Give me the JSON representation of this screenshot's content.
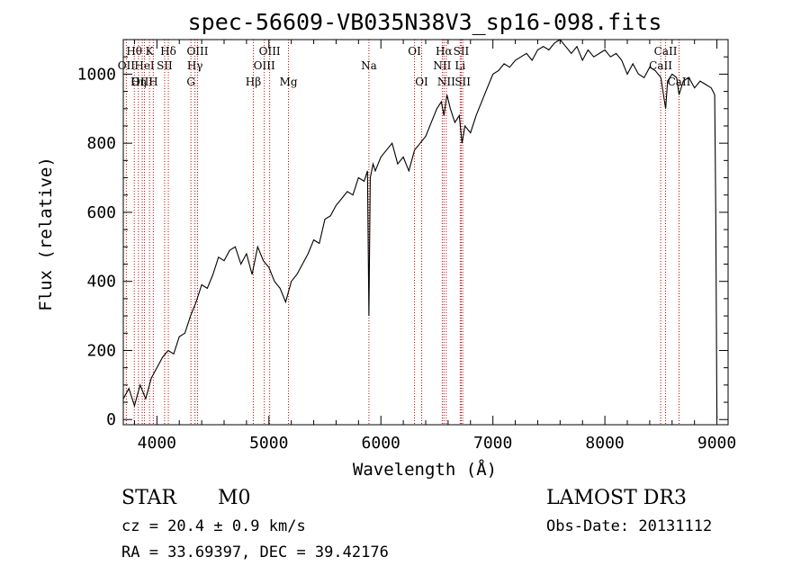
{
  "chart_data": {
    "type": "line",
    "title": "spec-56609-VB035N38V3_sp16-098.fits",
    "xlabel": "Wavelength (Å)",
    "ylabel": "Flux (relative)",
    "xlim": [
      3700,
      9100
    ],
    "ylim": [
      -15,
      1100
    ],
    "xticks": [
      4000,
      5000,
      6000,
      7000,
      8000,
      9000
    ],
    "xtick_labels": [
      "4000",
      "5000",
      "6000",
      "7000",
      "8000",
      "9000"
    ],
    "yticks": [
      0,
      200,
      400,
      600,
      800,
      1000
    ],
    "ytick_labels": [
      "0",
      "200",
      "400",
      "600",
      "800",
      "1000"
    ],
    "series": [
      {
        "name": "spectrum",
        "color": "#000000",
        "x": [
          3700,
          3750,
          3800,
          3850,
          3900,
          3950,
          4000,
          4050,
          4100,
          4150,
          4200,
          4250,
          4300,
          4350,
          4400,
          4450,
          4500,
          4550,
          4600,
          4650,
          4700,
          4750,
          4800,
          4850,
          4900,
          4950,
          5000,
          5050,
          5100,
          5150,
          5200,
          5250,
          5300,
          5350,
          5400,
          5450,
          5500,
          5550,
          5600,
          5650,
          5700,
          5750,
          5800,
          5850,
          5880,
          5893,
          5905,
          5930,
          5950,
          6000,
          6050,
          6100,
          6150,
          6200,
          6250,
          6300,
          6350,
          6400,
          6450,
          6500,
          6540,
          6563,
          6590,
          6620,
          6660,
          6700,
          6725,
          6750,
          6800,
          6850,
          6900,
          6950,
          7000,
          7050,
          7100,
          7150,
          7200,
          7250,
          7300,
          7350,
          7400,
          7450,
          7500,
          7550,
          7600,
          7650,
          7700,
          7750,
          7800,
          7850,
          7900,
          7950,
          8000,
          8050,
          8100,
          8150,
          8200,
          8250,
          8300,
          8350,
          8400,
          8450,
          8500,
          8542,
          8560,
          8600,
          8640,
          8662,
          8700,
          8750,
          8800,
          8850,
          8900,
          8950,
          8980,
          8990,
          9000
        ],
        "y": [
          60,
          90,
          40,
          100,
          60,
          120,
          150,
          180,
          200,
          190,
          240,
          250,
          300,
          340,
          390,
          380,
          420,
          470,
          460,
          490,
          500,
          450,
          480,
          420,
          500,
          460,
          440,
          400,
          380,
          340,
          400,
          420,
          450,
          480,
          520,
          510,
          580,
          590,
          620,
          640,
          660,
          650,
          700,
          690,
          720,
          300,
          700,
          740,
          720,
          760,
          780,
          800,
          740,
          760,
          720,
          780,
          800,
          820,
          860,
          900,
          920,
          880,
          940,
          900,
          860,
          880,
          800,
          850,
          830,
          880,
          920,
          960,
          1000,
          1010,
          1030,
          1020,
          1040,
          1050,
          1060,
          1040,
          1070,
          1080,
          1070,
          1090,
          1100,
          1080,
          1060,
          1080,
          1040,
          1070,
          1050,
          1060,
          1070,
          1050,
          1060,
          1040,
          1000,
          1030,
          1000,
          990,
          1020,
          1010,
          990,
          900,
          980,
          1000,
          990,
          940,
          980,
          990,
          960,
          980,
          970,
          960,
          940,
          600,
          0
        ]
      }
    ],
    "line_markers": [
      {
        "label": "Hθ",
        "wavelength": 3798,
        "row": 1
      },
      {
        "label": "OII",
        "wavelength": 3727,
        "row": 2
      },
      {
        "label": "OIII",
        "wavelength": 3869,
        "row": 3
      },
      {
        "label": "K",
        "wavelength": 3934,
        "row": 1
      },
      {
        "label": "HeI",
        "wavelength": 3889,
        "row": 2
      },
      {
        "label": "Hη",
        "wavelength": 3835,
        "row": 3
      },
      {
        "label": "Hδ",
        "wavelength": 4102,
        "row": 1
      },
      {
        "label": "SII",
        "wavelength": 4069,
        "row": 2
      },
      {
        "label": "H",
        "wavelength": 3968,
        "row": 3
      },
      {
        "label": "OIII",
        "wavelength": 4363,
        "row": 1
      },
      {
        "label": "Hγ",
        "wavelength": 4340,
        "row": 2
      },
      {
        "label": "G",
        "wavelength": 4304,
        "row": 3
      },
      {
        "label": "OIII",
        "wavelength": 5007,
        "row": 1
      },
      {
        "label": "OIII",
        "wavelength": 4959,
        "row": 2
      },
      {
        "label": "Hβ",
        "wavelength": 4861,
        "row": 3
      },
      {
        "label": "Mg",
        "wavelength": 5175,
        "row": 3
      },
      {
        "label": "Na",
        "wavelength": 5893,
        "row": 2
      },
      {
        "label": "OI",
        "wavelength": 6300,
        "row": 1
      },
      {
        "label": "OI",
        "wavelength": 6364,
        "row": 3
      },
      {
        "label": "Hα",
        "wavelength": 6563,
        "row": 1
      },
      {
        "label": "NII",
        "wavelength": 6548,
        "row": 2
      },
      {
        "label": "NII",
        "wavelength": 6584,
        "row": 3
      },
      {
        "label": "SII",
        "wavelength": 6717,
        "row": 1
      },
      {
        "label": "Li",
        "wavelength": 6708,
        "row": 2
      },
      {
        "label": "SII",
        "wavelength": 6731,
        "row": 3
      },
      {
        "label": "CaII",
        "wavelength": 8542,
        "row": 1
      },
      {
        "label": "CaII",
        "wavelength": 8498,
        "row": 2
      },
      {
        "label": "CaII",
        "wavelength": 8662,
        "row": 3
      }
    ],
    "marker_color": "#cc0000"
  },
  "info": {
    "class": "STAR",
    "subclass": "M0",
    "survey": "LAMOST DR3",
    "redshift": "cz = 20.4 ± 0.9 km/s",
    "obs_date": "Obs-Date: 20131112",
    "coords": "RA =  33.69397, DEC =  39.42176"
  }
}
